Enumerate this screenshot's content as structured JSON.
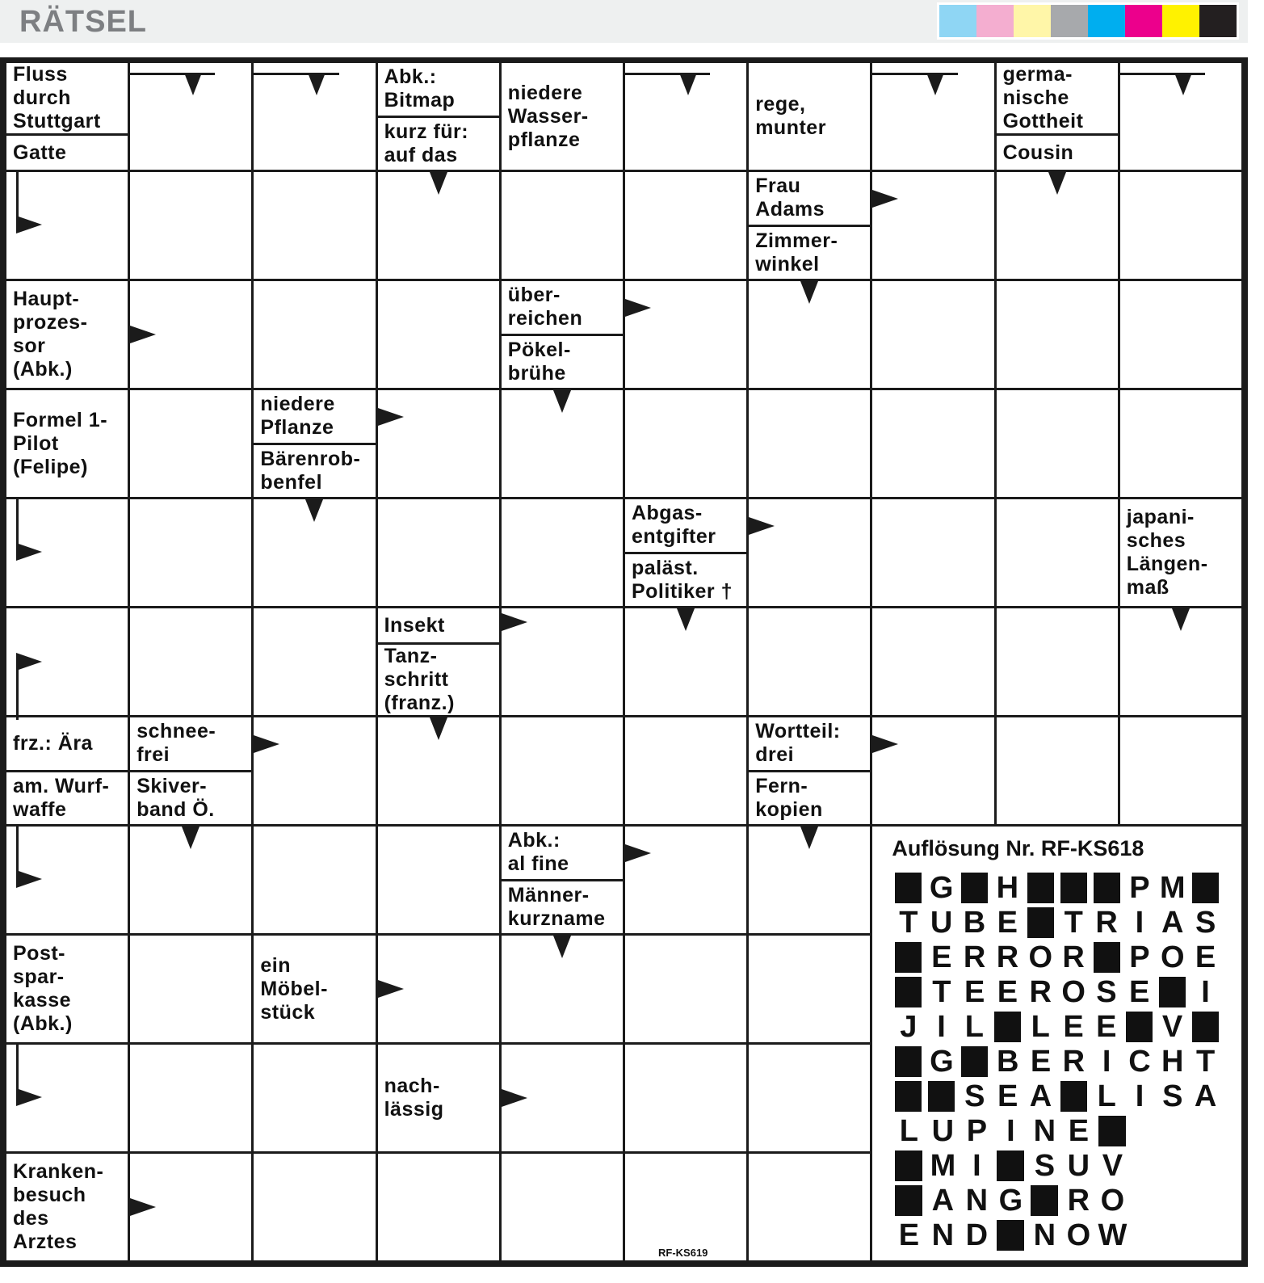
{
  "header": {
    "title": "RÄTSEL",
    "swatches": [
      "#8fd6f4",
      "#f4aed0",
      "#fff6a8",
      "#a7a9ac",
      "#00aeef",
      "#ec008c",
      "#fff200",
      "#231f20"
    ]
  },
  "puzzle": {
    "clues": [
      {
        "row": 0,
        "col": 0,
        "parts": [
          "Fluss\ndurch\nStuttgart",
          "Gatte"
        ]
      },
      {
        "row": 0,
        "col": 3,
        "parts": [
          "Abk.:\nBitmap",
          "kurz für:\nauf das"
        ]
      },
      {
        "row": 0,
        "col": 4,
        "parts": [
          "niedere\nWasser-\npflanze"
        ]
      },
      {
        "row": 0,
        "col": 6,
        "parts": [
          "rege,\nmunter"
        ]
      },
      {
        "row": 0,
        "col": 8,
        "parts": [
          "germa-\nnische\nGottheit",
          "Cousin"
        ]
      },
      {
        "row": 1,
        "col": 6,
        "parts": [
          "Frau\nAdams",
          "Zimmer-\nwinkel"
        ]
      },
      {
        "row": 2,
        "col": 0,
        "parts": [
          "Haupt-\nprozes-\nsor\n(Abk.)"
        ]
      },
      {
        "row": 2,
        "col": 4,
        "parts": [
          "über-\nreichen",
          "Pökel-\nbrühe"
        ]
      },
      {
        "row": 3,
        "col": 0,
        "parts": [
          "Formel 1-\nPilot\n(Felipe)"
        ]
      },
      {
        "row": 3,
        "col": 2,
        "parts": [
          "niedere\nPflanze",
          "Bärenrob-\nbenfel"
        ]
      },
      {
        "row": 4,
        "col": 5,
        "parts": [
          "Abgas-\nentgifter",
          "paläst.\nPolitiker †"
        ]
      },
      {
        "row": 4,
        "col": 9,
        "parts": [
          "japani-\nsches\nLängen-\nmaß"
        ]
      },
      {
        "row": 5,
        "col": 3,
        "parts": [
          "Insekt",
          "Tanz-\nschritt\n(franz.)"
        ]
      },
      {
        "row": 6,
        "col": 0,
        "parts": [
          "frz.: Ära",
          "am. Wurf-\nwaffe"
        ]
      },
      {
        "row": 6,
        "col": 1,
        "parts": [
          "schnee-\nfrei",
          "Skiver-\nband Ö."
        ]
      },
      {
        "row": 6,
        "col": 6,
        "parts": [
          "Wortteil:\ndrei",
          "Fern-\nkopien"
        ]
      },
      {
        "row": 7,
        "col": 4,
        "parts": [
          "Abk.:\nal fine",
          "Männer-\nkurzname"
        ]
      },
      {
        "row": 8,
        "col": 0,
        "parts": [
          "Post-\nspar-\nkasse\n(Abk.)"
        ]
      },
      {
        "row": 8,
        "col": 2,
        "parts": [
          "ein\nMöbel-\nstück"
        ]
      },
      {
        "row": 9,
        "col": 3,
        "parts": [
          "nach-\nlässig"
        ]
      },
      {
        "row": 10,
        "col": 0,
        "parts": [
          "Kranken-\nbesuch\ndes\nArztes"
        ]
      }
    ],
    "code": "RF-KS619"
  },
  "solution": {
    "title": "Auflösung Nr. RF-KS618",
    "rows": [
      "#G#H###PM#",
      "TUBE#TRIAS",
      "#ERROR#POE",
      "#TEEROSE#I",
      "JIL#LEE#V#",
      "#G#BERICHT",
      "##SEA#LISA",
      "LUPINE#",
      "#MI#SUV",
      "#ANG#RO",
      "END#NOW"
    ]
  }
}
